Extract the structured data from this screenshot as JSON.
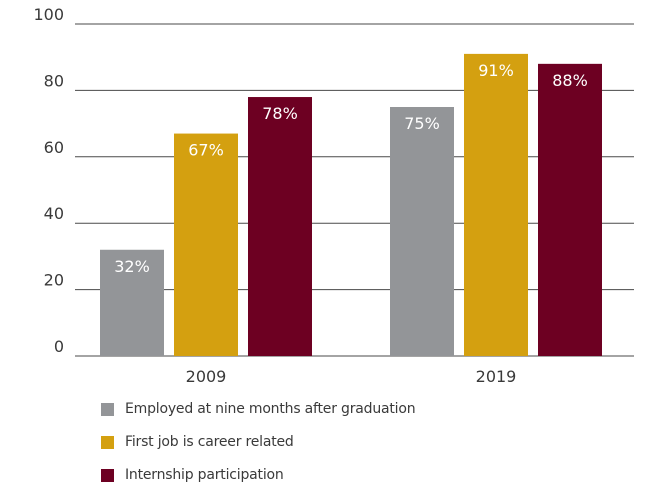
{
  "chart_data": {
    "type": "bar",
    "categories": [
      "2009",
      "2019"
    ],
    "series": [
      {
        "name": "Employed at nine months after graduation",
        "values": [
          32,
          75
        ],
        "labels": [
          "32%",
          "75%"
        ],
        "color": "#939598"
      },
      {
        "name": "First job is career related",
        "values": [
          67,
          91
        ],
        "labels": [
          "67%",
          "91%"
        ],
        "color": "#d4a010"
      },
      {
        "name": "Internship participation",
        "values": [
          78,
          88
        ],
        "labels": [
          "78%",
          "88%"
        ],
        "color": "#6d0022"
      }
    ],
    "ylim": [
      0,
      100
    ],
    "yticks": [
      0,
      20,
      40,
      60,
      80,
      100
    ],
    "ytick_labels": [
      "0",
      "20",
      "40",
      "60",
      "80",
      "100"
    ],
    "title": "",
    "xlabel": "",
    "ylabel": "",
    "grid": true,
    "legend_position": "bottom-left"
  }
}
